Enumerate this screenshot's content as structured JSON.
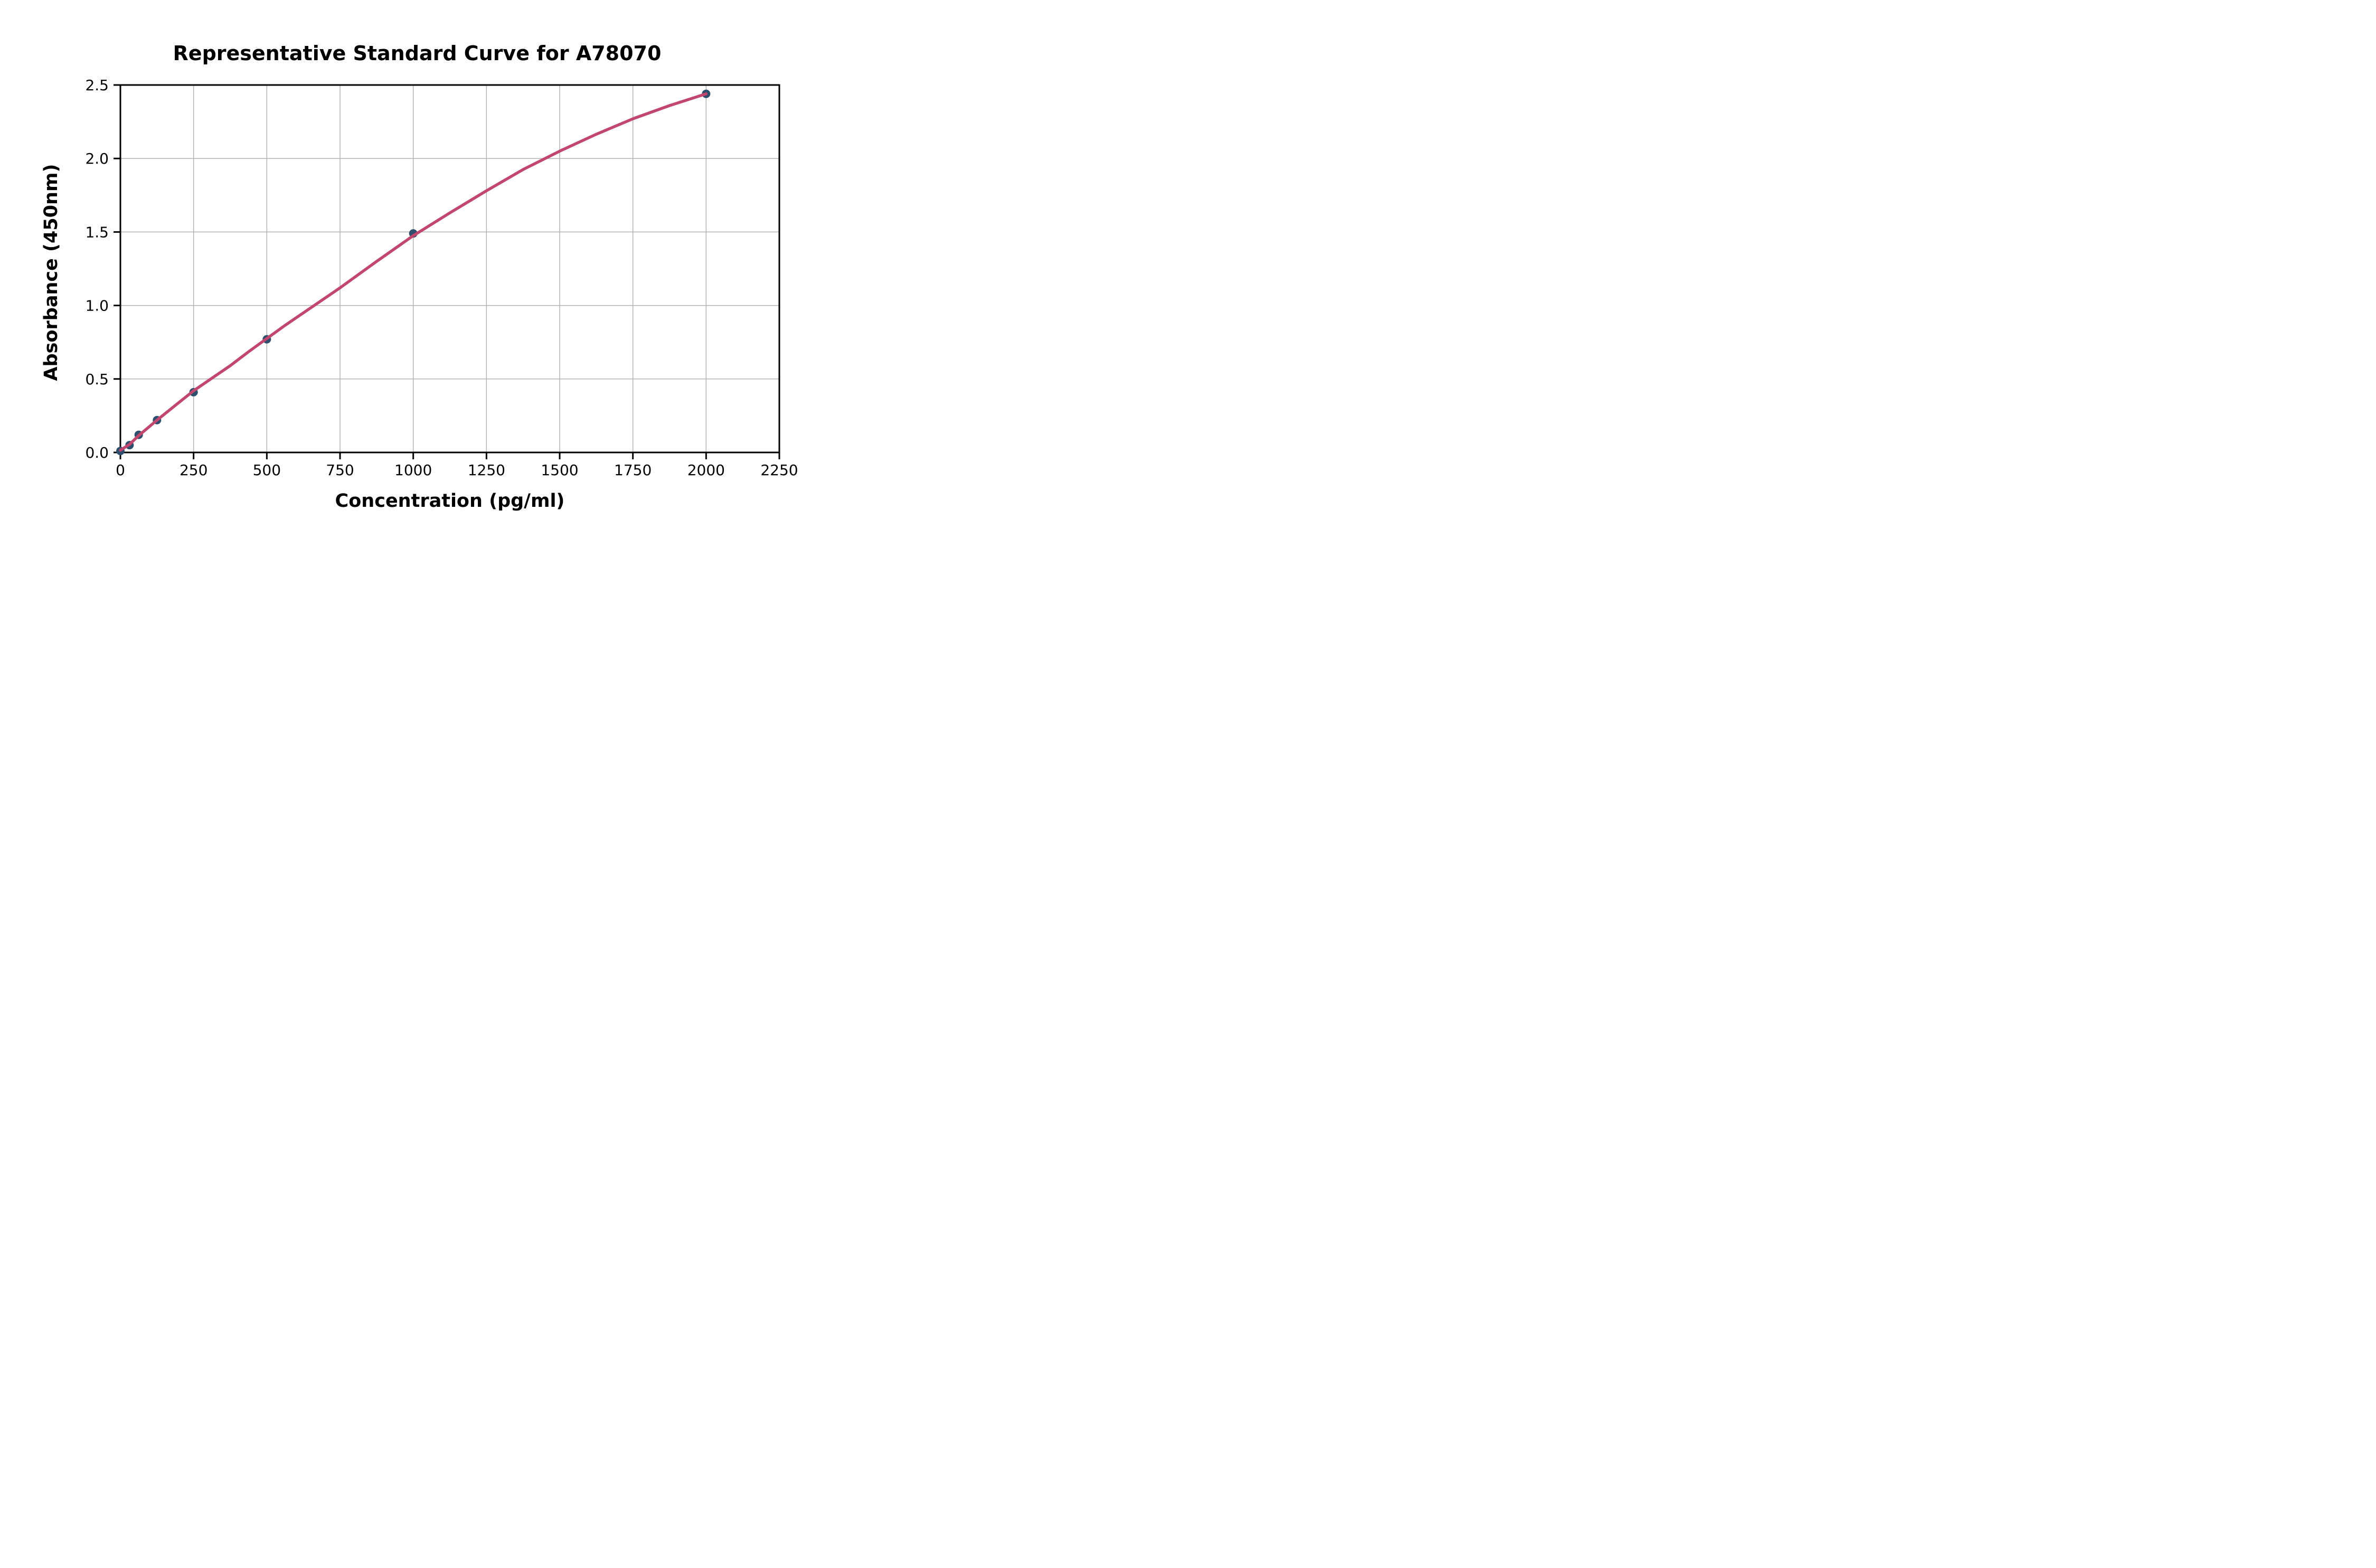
{
  "chart_data": {
    "type": "scatter",
    "title": "Representative Standard Curve for A78070",
    "xlabel": "Concentration (pg/ml)",
    "ylabel": "Absorbance (450nm)",
    "xlim": [
      0,
      2250
    ],
    "ylim": [
      0,
      2.5
    ],
    "x_ticks": [
      0,
      250,
      500,
      750,
      1000,
      1250,
      1500,
      1750,
      2000,
      2250
    ],
    "x_tick_labels": [
      "0",
      "250",
      "500",
      "750",
      "1000",
      "1250",
      "1500",
      "1750",
      "2000",
      "2250"
    ],
    "y_ticks": [
      0,
      0.5,
      1.0,
      1.5,
      2.0,
      2.5
    ],
    "y_tick_labels": [
      "0.0",
      "0.5",
      "1.0",
      "1.5",
      "2.0",
      "2.5"
    ],
    "grid": true,
    "legend": "none",
    "points": {
      "x": [
        0,
        31.25,
        62.5,
        125,
        250,
        500,
        1000,
        2000
      ],
      "y": [
        0.01,
        0.05,
        0.12,
        0.22,
        0.41,
        0.77,
        1.49,
        2.44
      ]
    },
    "fit_curve_samples": {
      "x": [
        0,
        31.25,
        62.5,
        125,
        187.5,
        250,
        312.5,
        375,
        437.5,
        500,
        562.5,
        625,
        750,
        875,
        1000,
        1125,
        1250,
        1375,
        1500,
        1625,
        1750,
        1875,
        2000
      ],
      "y": [
        0.015,
        0.055,
        0.115,
        0.22,
        0.32,
        0.42,
        0.505,
        0.59,
        0.685,
        0.775,
        0.865,
        0.95,
        1.12,
        1.3,
        1.475,
        1.63,
        1.78,
        1.925,
        2.05,
        2.165,
        2.27,
        2.36,
        2.44
      ]
    },
    "colors": {
      "point": "#2e4f6d",
      "curve": "#c2476e",
      "grid": "#b3b3b3",
      "spine": "#000000",
      "text": "#000000",
      "background": "#ffffff"
    }
  }
}
